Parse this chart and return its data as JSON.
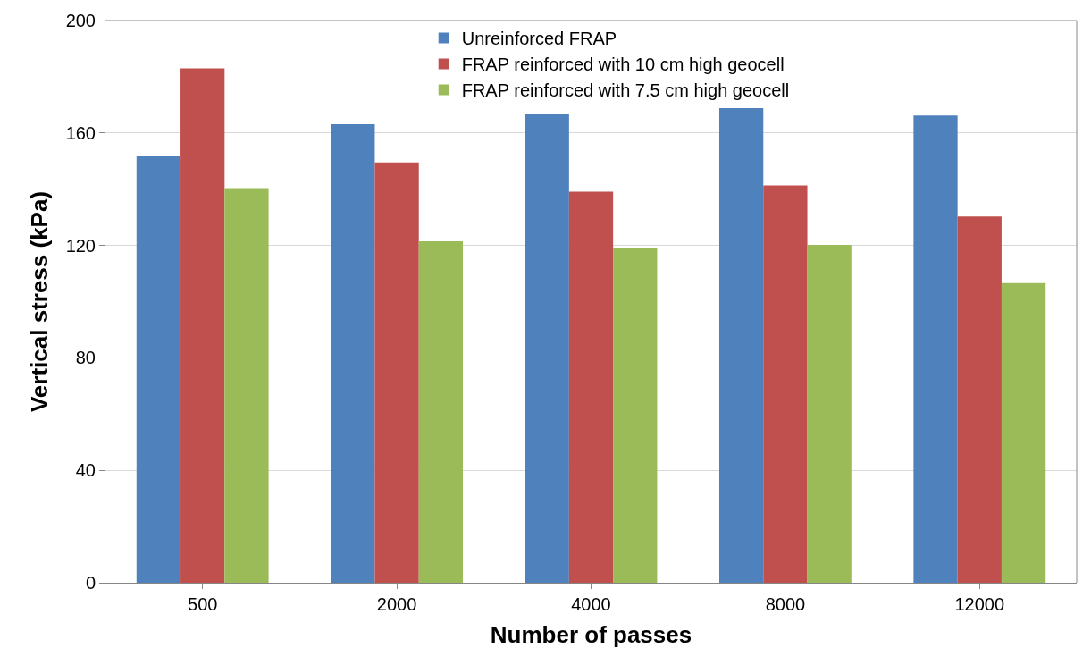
{
  "chart_data": {
    "type": "bar",
    "xlabel": "Number of passes",
    "ylabel": "Vertical stress (kPa)",
    "categories": [
      "500",
      "2000",
      "4000",
      "8000",
      "12000"
    ],
    "series": [
      {
        "name": "Unreinforced FRAP",
        "color": "#4f81bd",
        "values": [
          151.7,
          163.1,
          166.6,
          168.8,
          166.2
        ]
      },
      {
        "name": "FRAP reinforced with 10 cm high geocell",
        "color": "#c0504d",
        "values": [
          183,
          149.5,
          139.1,
          141.3,
          130.3
        ]
      },
      {
        "name": "FRAP reinforced with 7.5 cm high geocell",
        "color": "#9bbb59",
        "values": [
          140.4,
          121.5,
          119.2,
          120.2,
          106.6
        ]
      }
    ],
    "ylim": [
      0,
      200
    ],
    "yticks": [
      0,
      40,
      80,
      120,
      160,
      200
    ],
    "grid": "y",
    "legend": "top"
  }
}
